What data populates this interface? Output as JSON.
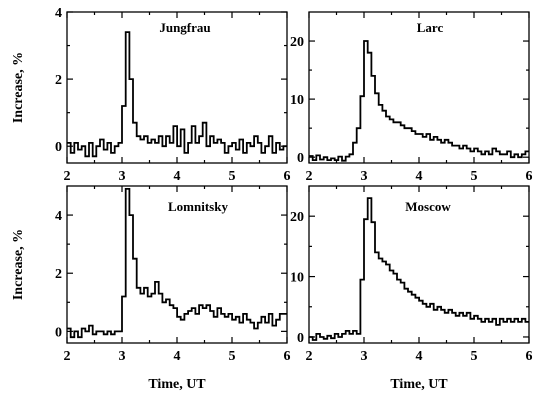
{
  "figure": {
    "ylabel": "Increase, %",
    "xlabel": "Time, UT"
  },
  "chart_data": [
    {
      "type": "line",
      "title": "Jungfrau",
      "xlim": [
        2,
        6
      ],
      "ylim": [
        -0.5,
        4
      ],
      "x_ticks": [
        2,
        3,
        4,
        5,
        6
      ],
      "y_ticks": [
        0,
        2,
        4
      ],
      "series": [
        {
          "x0": 2.0,
          "dx": 0.0667,
          "values": [
            0.1,
            -0.2,
            0.1,
            -0.1,
            0.0,
            -0.3,
            0.1,
            -0.3,
            0.0,
            0.2,
            -0.1,
            0.1,
            -0.2,
            0.0,
            0.1,
            1.2,
            3.4,
            2.0,
            0.7,
            0.3,
            0.2,
            0.3,
            0.1,
            0.2,
            0.1,
            0.3,
            0.0,
            0.3,
            0.1,
            0.6,
            0.0,
            0.5,
            -0.2,
            0.1,
            0.6,
            0.1,
            0.3,
            0.7,
            0.0,
            0.3,
            0.1,
            0.2,
            0.1,
            -0.2,
            0.0,
            0.1,
            -0.1,
            0.2,
            -0.2,
            0.1,
            0.0,
            0.3,
            0.1,
            -0.2,
            0.0,
            0.3,
            -0.2,
            0.1,
            -0.1,
            0.0
          ]
        }
      ]
    },
    {
      "type": "line",
      "title": "Larc",
      "xlim": [
        2,
        6
      ],
      "ylim": [
        -1,
        25
      ],
      "x_ticks": [
        2,
        3,
        4,
        5,
        6
      ],
      "y_ticks": [
        0,
        10,
        20
      ],
      "series": [
        {
          "x0": 2.0,
          "dx": 0.0667,
          "values": [
            0.2,
            -0.5,
            0.3,
            -0.4,
            0.0,
            -0.5,
            -0.2,
            -0.5,
            0.1,
            -0.6,
            0.1,
            0.5,
            2.5,
            5.0,
            10.5,
            20.0,
            18.0,
            14.0,
            11.0,
            9.0,
            8.0,
            7.0,
            6.5,
            6.0,
            6.0,
            5.5,
            5.0,
            5.0,
            4.5,
            4.0,
            4.0,
            3.5,
            4.0,
            3.0,
            3.5,
            3.0,
            2.5,
            3.0,
            2.5,
            2.0,
            2.0,
            1.5,
            2.0,
            1.5,
            1.0,
            1.5,
            1.0,
            0.5,
            1.0,
            0.5,
            1.5,
            1.0,
            0.5,
            0.5,
            1.0,
            0.0,
            0.5,
            0.0,
            0.5,
            1.0
          ]
        }
      ]
    },
    {
      "type": "line",
      "title": "Lomnitsky",
      "xlim": [
        2,
        6
      ],
      "ylim": [
        -0.4,
        5
      ],
      "x_ticks": [
        2,
        3,
        4,
        5,
        6
      ],
      "y_ticks": [
        0,
        2,
        4
      ],
      "series": [
        {
          "x0": 2.0,
          "dx": 0.0667,
          "values": [
            0.1,
            -0.2,
            0.0,
            -0.2,
            0.1,
            0.0,
            0.2,
            -0.1,
            0.0,
            0.0,
            -0.1,
            0.0,
            -0.1,
            0.0,
            0.0,
            1.2,
            4.9,
            4.0,
            2.5,
            1.5,
            1.3,
            1.5,
            1.2,
            1.3,
            1.7,
            1.3,
            1.0,
            1.1,
            0.9,
            0.8,
            0.5,
            0.4,
            0.6,
            0.7,
            0.8,
            0.6,
            0.9,
            0.8,
            0.9,
            0.7,
            0.5,
            0.8,
            0.6,
            0.5,
            0.6,
            0.4,
            0.5,
            0.3,
            0.6,
            0.4,
            0.3,
            0.1,
            0.3,
            0.5,
            0.3,
            0.6,
            0.2,
            0.4,
            0.6,
            0.6
          ]
        }
      ]
    },
    {
      "type": "line",
      "title": "Moscow",
      "xlim": [
        2,
        6
      ],
      "ylim": [
        -1,
        25
      ],
      "x_ticks": [
        2,
        3,
        4,
        5,
        6
      ],
      "y_ticks": [
        0,
        10,
        20
      ],
      "series": [
        {
          "x0": 2.0,
          "dx": 0.0667,
          "values": [
            0.0,
            -0.5,
            0.5,
            0.0,
            -0.3,
            0.2,
            -0.2,
            0.5,
            0.0,
            0.5,
            1.0,
            0.5,
            1.0,
            0.5,
            9.5,
            19.5,
            23.0,
            19.0,
            14.0,
            13.0,
            12.5,
            12.0,
            11.0,
            10.5,
            9.5,
            9.0,
            8.0,
            7.5,
            7.0,
            6.5,
            6.0,
            5.5,
            5.0,
            5.5,
            4.5,
            5.0,
            4.5,
            4.0,
            4.5,
            4.0,
            3.5,
            4.0,
            3.5,
            4.0,
            3.0,
            3.5,
            3.0,
            2.5,
            3.0,
            2.5,
            3.0,
            2.0,
            3.0,
            2.5,
            3.0,
            2.5,
            3.0,
            2.5,
            3.0,
            2.5
          ]
        }
      ]
    }
  ]
}
